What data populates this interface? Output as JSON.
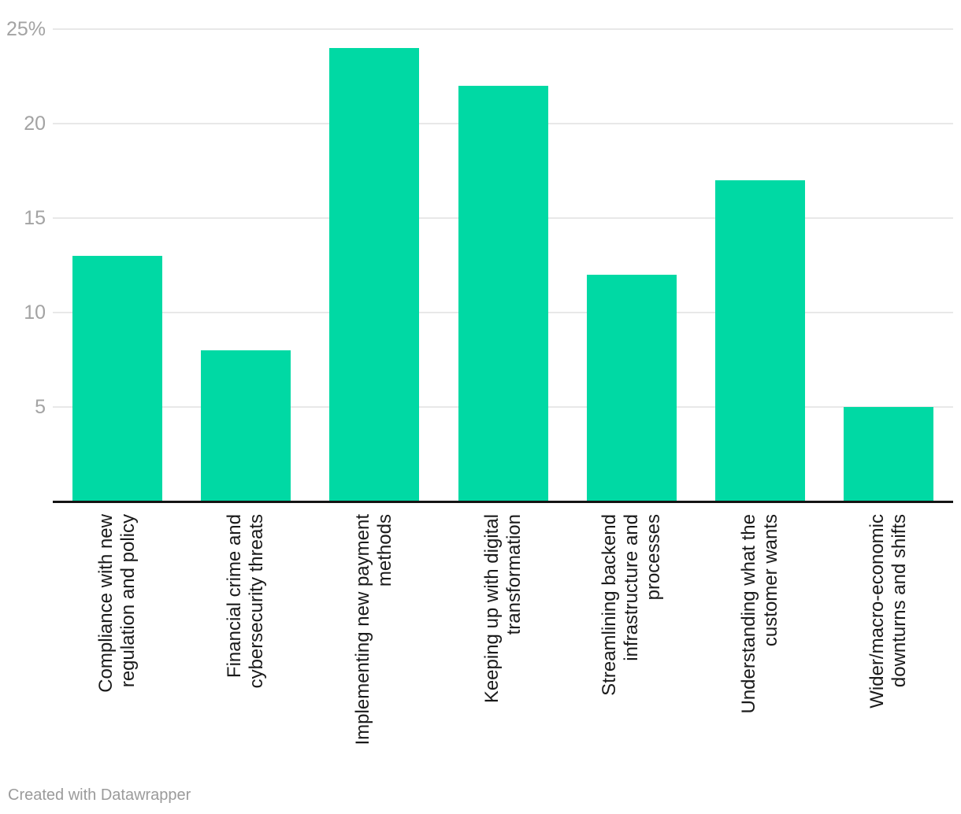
{
  "chart_data": {
    "type": "bar",
    "title": "",
    "xlabel": "",
    "ylabel": "",
    "categories": [
      "Compliance with new regulation and policy",
      "Financial crime and cybersecurity threats",
      "Implementing new payment methods",
      "Keeping up with digital transformation",
      "Streamlining backend infrastructure and processes",
      "Understanding what the customer wants",
      "Wider/macro-economic downturns and shifts"
    ],
    "category_label_lines": [
      [
        "Compliance with new",
        "regulation and policy"
      ],
      [
        "Financial crime and",
        "cybersecurity threats"
      ],
      [
        "Implementing new payment",
        "methods"
      ],
      [
        "Keeping up with digital",
        "transformation"
      ],
      [
        "Streamlining backend",
        "infrastructure and",
        "processes"
      ],
      [
        "Understanding what the",
        "customer wants"
      ],
      [
        "Wider/macro-economic",
        "downturns and shifts"
      ]
    ],
    "values": [
      13,
      8,
      24,
      22,
      12,
      17,
      5
    ],
    "unit": "percent",
    "ylim": [
      0,
      25
    ],
    "yticks": [
      5,
      10,
      15,
      20,
      25
    ],
    "ytick_labels": [
      "5",
      "10",
      "15",
      "20",
      "25%"
    ],
    "grid": true,
    "legend": false
  },
  "colors": {
    "bar": "#00D9A4",
    "grid_line": "#e8e8e8",
    "axis_line": "#141414",
    "tick_label": "#a3a3a3",
    "category_label": "#1a1a1a",
    "footer_text": "#9b9b9b",
    "background": "#ffffff"
  },
  "footer": {
    "attribution": "Created with Datawrapper"
  }
}
